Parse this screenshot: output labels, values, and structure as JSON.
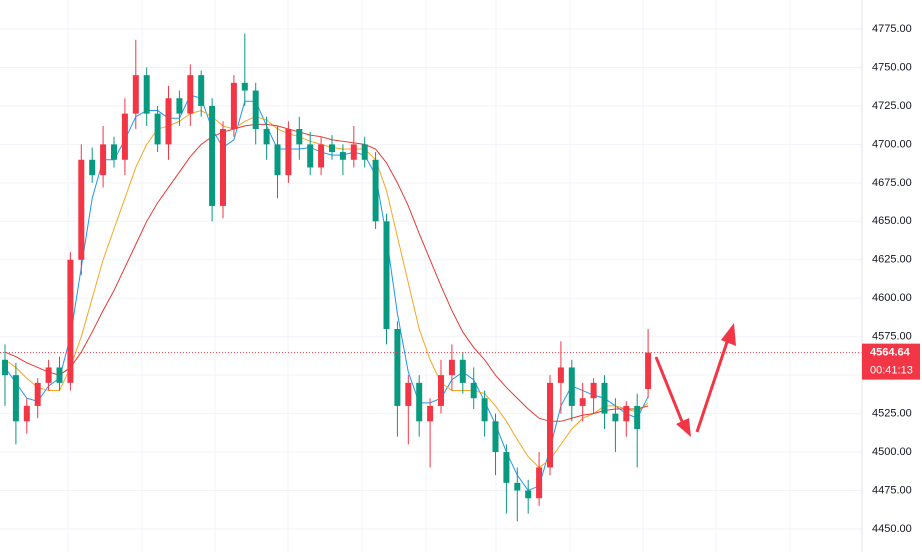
{
  "chart_data": {
    "type": "candlestick",
    "open": [
      4560,
      4550,
      4520,
      4530,
      4545,
      4555,
      4545,
      4625,
      4690,
      4680,
      4700,
      4690,
      4720,
      4745,
      4720,
      4700,
      4730,
      4720,
      4745,
      4725,
      4660,
      4710,
      4740,
      4735,
      4710,
      4700,
      4680,
      4710,
      4700,
      4685,
      4700,
      4695,
      4690,
      4700,
      4690,
      4650,
      4580,
      4530,
      4545,
      4520,
      4530,
      4550,
      4560,
      4545,
      4535,
      4520,
      4500,
      4480,
      4475,
      4470,
      4490,
      4545,
      4555,
      4530,
      4535,
      4545,
      4525,
      4520,
      4530,
      4541
    ],
    "high": [
      4570,
      4558,
      4535,
      4548,
      4560,
      4562,
      4630,
      4700,
      4698,
      4712,
      4705,
      4730,
      4768,
      4750,
      4725,
      4738,
      4735,
      4752,
      4748,
      4730,
      4715,
      4745,
      4772,
      4740,
      4718,
      4712,
      4715,
      4718,
      4708,
      4705,
      4706,
      4700,
      4712,
      4705,
      4695,
      4655,
      4585,
      4550,
      4550,
      4535,
      4560,
      4570,
      4565,
      4555,
      4540,
      4525,
      4505,
      4490,
      4482,
      4500,
      4550,
      4572,
      4560,
      4545,
      4548,
      4550,
      4535,
      4533,
      4538,
      4580
    ],
    "low": [
      4530,
      4505,
      4512,
      4522,
      4540,
      4540,
      4540,
      4615,
      4675,
      4672,
      4685,
      4680,
      4710,
      4712,
      4695,
      4690,
      4712,
      4712,
      4718,
      4650,
      4652,
      4705,
      4725,
      4700,
      4690,
      4665,
      4675,
      4690,
      4680,
      4680,
      4690,
      4680,
      4685,
      4685,
      4645,
      4570,
      4510,
      4505,
      4510,
      4490,
      4525,
      4540,
      4538,
      4528,
      4510,
      4485,
      4460,
      4455,
      4460,
      4465,
      4485,
      4525,
      4520,
      4520,
      4525,
      4515,
      4500,
      4510,
      4490,
      4535
    ],
    "close": [
      4550,
      4520,
      4530,
      4545,
      4555,
      4545,
      4625,
      4690,
      4680,
      4700,
      4690,
      4720,
      4745,
      4720,
      4700,
      4730,
      4720,
      4745,
      4725,
      4660,
      4710,
      4740,
      4735,
      4710,
      4700,
      4680,
      4710,
      4700,
      4685,
      4700,
      4695,
      4690,
      4700,
      4690,
      4650,
      4580,
      4530,
      4545,
      4520,
      4530,
      4550,
      4560,
      4545,
      4535,
      4520,
      4500,
      4480,
      4475,
      4470,
      4490,
      4545,
      4555,
      4530,
      4535,
      4545,
      4525,
      4520,
      4530,
      4515,
      4564.64
    ],
    "up_color": "#f23645",
    "down_color": "#089981",
    "lines": [
      {
        "color": "#2196f3",
        "values": [
          4555,
          4545,
          4535,
          4533,
          4543,
          4548,
          4575,
          4620,
          4665,
          4690,
          4690,
          4703,
          4718,
          4722,
          4722,
          4717,
          4717,
          4732,
          4730,
          4710,
          4698,
          4703,
          4728,
          4728,
          4712,
          4697,
          4697,
          4697,
          4698,
          4695,
          4693,
          4693,
          4695,
          4693,
          4680,
          4640,
          4590,
          4552,
          4532,
          4532,
          4535,
          4547,
          4552,
          4547,
          4533,
          4518,
          4500,
          4485,
          4475,
          4478,
          4502,
          4530,
          4543,
          4540,
          4537,
          4535,
          4530,
          4525,
          4522,
          4536
        ]
      },
      {
        "color": "#f5a623",
        "values": [
          4560,
          4555,
          4548,
          4542,
          4540,
          4540,
          4555,
          4575,
          4600,
          4625,
          4645,
          4665,
          4685,
          4700,
          4710,
          4712,
          4715,
          4720,
          4722,
          4718,
          4712,
          4710,
          4715,
          4718,
          4716,
          4710,
          4707,
          4705,
          4702,
          4700,
          4698,
          4697,
          4697,
          4697,
          4690,
          4670,
          4640,
          4610,
          4580,
          4560,
          4545,
          4540,
          4540,
          4540,
          4538,
          4530,
          4520,
          4508,
          4497,
          4490,
          4495,
          4505,
          4515,
          4522,
          4525,
          4530,
          4530,
          4528,
          4526,
          4532
        ]
      },
      {
        "color": "#e53935",
        "values": [
          4565,
          4562,
          4558,
          4555,
          4552,
          4550,
          4555,
          4565,
          4578,
          4592,
          4605,
          4620,
          4635,
          4650,
          4662,
          4672,
          4682,
          4692,
          4700,
          4705,
          4708,
          4710,
          4712,
          4713,
          4713,
          4712,
          4710,
          4708,
          4706,
          4705,
          4703,
          4702,
          4701,
          4700,
          4697,
          4688,
          4675,
          4660,
          4642,
          4625,
          4608,
          4592,
          4578,
          4568,
          4560,
          4550,
          4542,
          4535,
          4528,
          4522,
          4520,
          4520,
          4522,
          4524,
          4525,
          4527,
          4528,
          4528,
          4528,
          4530
        ]
      }
    ],
    "ylim": [
      4435.05,
      4793.85
    ],
    "yticks": [
      {
        "value": 4450,
        "label": "4450.00"
      },
      {
        "value": 4475,
        "label": "4475.00"
      },
      {
        "value": 4500,
        "label": "4500.00"
      },
      {
        "value": 4525,
        "label": "4525.00"
      },
      {
        "value": 4550,
        "label": "4550.00"
      },
      {
        "value": 4575,
        "label": "4575.00"
      },
      {
        "value": 4600,
        "label": "4600.00"
      },
      {
        "value": 4625,
        "label": "4625.00"
      },
      {
        "value": 4650,
        "label": "4650.00"
      },
      {
        "value": 4675,
        "label": "4675.00"
      },
      {
        "value": 4700,
        "label": "4700.00"
      },
      {
        "value": 4725,
        "label": "4725.00"
      },
      {
        "value": 4750,
        "label": "4750.00"
      },
      {
        "value": 4775,
        "label": "4775.00"
      }
    ],
    "last_price": 4564.64,
    "countdown": "00:41:13",
    "grid": true
  }
}
